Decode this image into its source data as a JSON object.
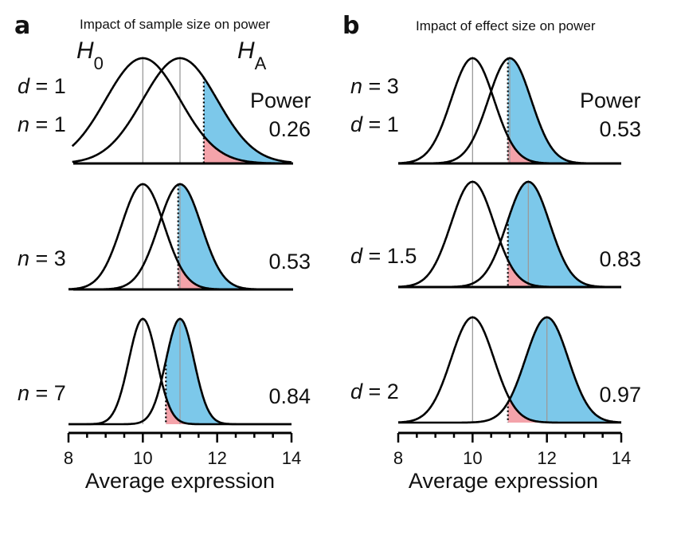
{
  "colors": {
    "power_fill": "#7cc8ea",
    "beta_fill": "#f4a3aa",
    "curve": "#000000",
    "mean_line": "#9a9a9a"
  },
  "chart_data": [
    {
      "type": "area",
      "panel": "a",
      "title": "Impact of sample size on power",
      "xlabel": "Average expression",
      "xlim": [
        8,
        14
      ],
      "xticks": [
        8,
        10,
        12,
        14
      ],
      "xtick_labels": [
        "8",
        "10",
        "12",
        "14"
      ],
      "minor_tick_step": 0.5,
      "null_label": "H",
      "null_sub": "0",
      "alt_label": "H",
      "alt_sub": "A",
      "power_header": "Power",
      "rows": [
        {
          "labels": [
            "d = 1",
            "n = 1"
          ],
          "mu0": 10,
          "mu1": 11,
          "sd": 1.0,
          "threshold": 11.64,
          "power": "0.26"
        },
        {
          "labels": [
            "n = 3"
          ],
          "mu0": 10,
          "mu1": 11,
          "sd": 0.577,
          "threshold": 10.95,
          "power": "0.53"
        },
        {
          "labels": [
            "n = 7"
          ],
          "mu0": 10,
          "mu1": 11,
          "sd": 0.378,
          "threshold": 10.62,
          "power": "0.84"
        }
      ]
    },
    {
      "type": "area",
      "panel": "b",
      "title": "Impact of effect size on power",
      "xlabel": "Average expression",
      "xlim": [
        8,
        14
      ],
      "xticks": [
        8,
        10,
        12,
        14
      ],
      "xtick_labels": [
        "8",
        "10",
        "12",
        "14"
      ],
      "minor_tick_step": 0.5,
      "power_header": "Power",
      "rows": [
        {
          "labels": [
            "n = 3",
            "d = 1"
          ],
          "mu0": 10,
          "mu1": 11,
          "sd": 0.577,
          "threshold": 10.95,
          "power": "0.53"
        },
        {
          "labels": [
            "d = 1.5"
          ],
          "mu0": 10,
          "mu1": 11.5,
          "sd": 0.577,
          "threshold": 10.95,
          "power": "0.83"
        },
        {
          "labels": [
            "d = 2"
          ],
          "mu0": 10,
          "mu1": 12,
          "sd": 0.577,
          "threshold": 10.95,
          "power": "0.97"
        }
      ]
    }
  ]
}
